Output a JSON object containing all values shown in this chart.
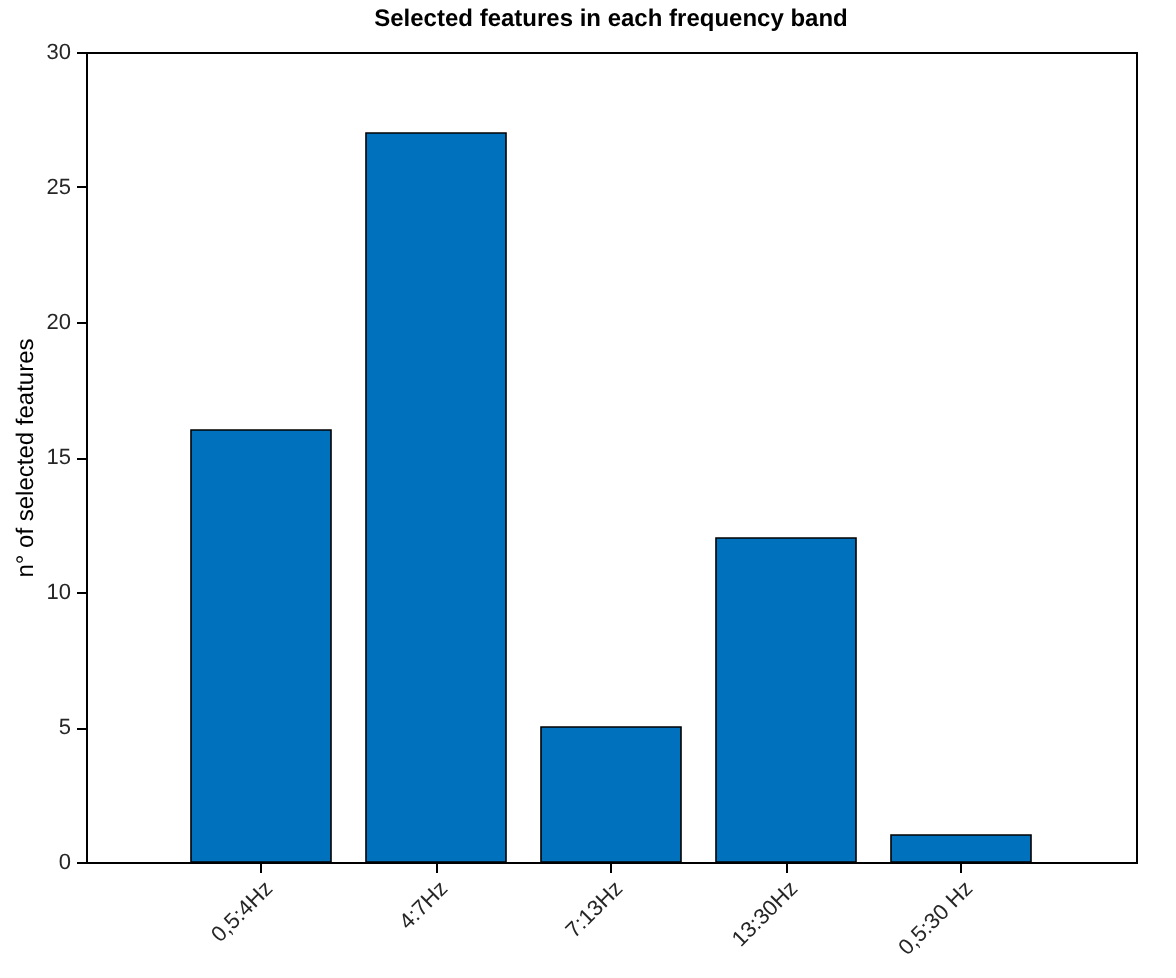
{
  "chart_data": {
    "type": "bar",
    "title": "Selected features in each frequency band",
    "ylabel": "n° of selected features",
    "categories": [
      "0,5:4Hz",
      "4:7Hz",
      "7:13Hz",
      "13:30Hz",
      "0,5:30 Hz"
    ],
    "values": [
      16,
      27,
      5,
      12,
      1
    ],
    "color": "#0072bd",
    "ylim": [
      0,
      30
    ],
    "yticks": [
      0,
      5,
      10,
      15,
      20,
      25,
      30
    ],
    "grid": false
  }
}
